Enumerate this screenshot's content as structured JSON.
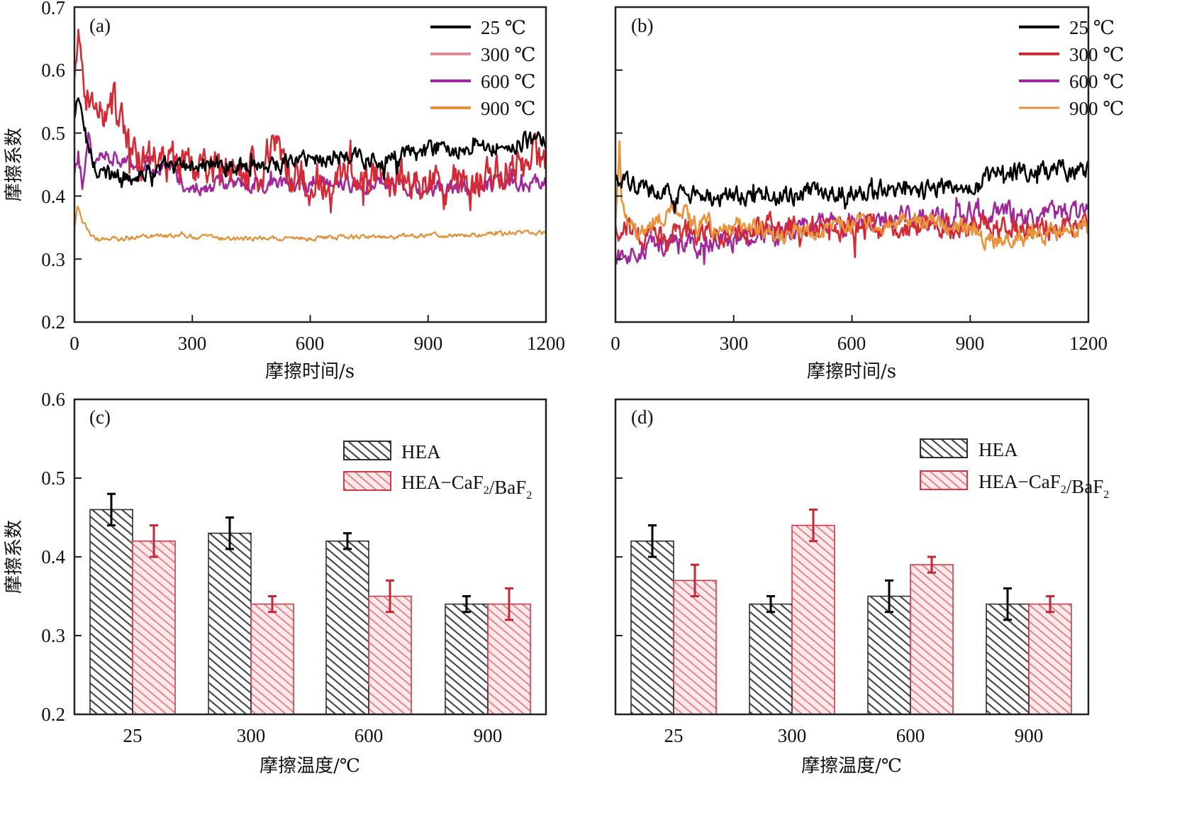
{
  "chart_data": [
    {
      "panel": "(a)",
      "type": "line",
      "xlabel": "摩擦时间/s",
      "ylabel": "摩擦系数",
      "xlim": [
        0,
        1200
      ],
      "ylim": [
        0.2,
        0.7
      ],
      "xticks": [
        "0",
        "300",
        "600",
        "900",
        "1200"
      ],
      "yticks": [
        "0.2",
        "0.3",
        "0.4",
        "0.5",
        "0.6",
        "0.7"
      ],
      "legend_position": "top-right",
      "series": [
        {
          "name": "25 ℃",
          "color": "#000000",
          "noise": 0.012,
          "x": [
            0,
            10,
            30,
            60,
            100,
            200,
            300,
            400,
            500,
            600,
            700,
            800,
            900,
            1000,
            1100,
            1200
          ],
          "y": [
            0.52,
            0.56,
            0.49,
            0.44,
            0.43,
            0.44,
            0.45,
            0.45,
            0.45,
            0.46,
            0.46,
            0.46,
            0.47,
            0.48,
            0.48,
            0.49
          ]
        },
        {
          "name": "300 ℃",
          "color": "#d42a35",
          "legend_color": "#e88a97",
          "noise": 0.025,
          "x": [
            0,
            10,
            30,
            60,
            100,
            150,
            200,
            300,
            400,
            480,
            500,
            540,
            600,
            700,
            800,
            900,
            1000,
            1100,
            1200
          ],
          "y": [
            0.58,
            0.63,
            0.57,
            0.53,
            0.55,
            0.46,
            0.45,
            0.45,
            0.44,
            0.44,
            0.5,
            0.43,
            0.42,
            0.43,
            0.43,
            0.42,
            0.42,
            0.44,
            0.46
          ]
        },
        {
          "name": "600 ℃",
          "color": "#a0289a",
          "noise": 0.01,
          "x": [
            0,
            10,
            20,
            35,
            50,
            80,
            150,
            250,
            270,
            400,
            600,
            800,
            880,
            900,
            1000,
            1100,
            1200
          ],
          "y": [
            0.43,
            0.47,
            0.41,
            0.5,
            0.45,
            0.47,
            0.45,
            0.44,
            0.41,
            0.42,
            0.42,
            0.42,
            0.41,
            0.41,
            0.41,
            0.42,
            0.42
          ]
        },
        {
          "name": "900 ℃",
          "color": "#e0913a",
          "noise": 0.003,
          "x": [
            0,
            8,
            20,
            40,
            60,
            100,
            200,
            400,
            600,
            800,
            1000,
            1200
          ],
          "y": [
            0.35,
            0.385,
            0.36,
            0.34,
            0.332,
            0.332,
            0.337,
            0.333,
            0.333,
            0.336,
            0.338,
            0.343
          ]
        }
      ]
    },
    {
      "panel": "(b)",
      "type": "line",
      "xlabel": "摩擦时间/s",
      "ylabel": "",
      "xlim": [
        0,
        1200
      ],
      "ylim": [
        0.2,
        0.7
      ],
      "xticks": [
        "0",
        "300",
        "600",
        "900",
        "1200"
      ],
      "yticks": [],
      "legend_position": "top-right",
      "series": [
        {
          "name": "25 ℃",
          "color": "#000000",
          "noise": 0.012,
          "x": [
            0,
            20,
            100,
            200,
            300,
            400,
            600,
            800,
            900,
            950,
            1000,
            1100,
            1200
          ],
          "y": [
            0.42,
            0.42,
            0.41,
            0.4,
            0.4,
            0.4,
            0.41,
            0.41,
            0.42,
            0.43,
            0.44,
            0.44,
            0.44
          ]
        },
        {
          "name": "300 ℃",
          "color": "#d42a35",
          "noise": 0.015,
          "x": [
            0,
            20,
            100,
            200,
            300,
            400,
            600,
            800,
            900,
            1000,
            1100,
            1200
          ],
          "y": [
            0.35,
            0.35,
            0.33,
            0.34,
            0.34,
            0.35,
            0.35,
            0.35,
            0.35,
            0.35,
            0.35,
            0.36
          ]
        },
        {
          "name": "600 ℃",
          "color": "#a0289a",
          "noise": 0.014,
          "x": [
            0,
            10,
            30,
            100,
            200,
            300,
            400,
            600,
            800,
            900,
            1000,
            1100,
            1200
          ],
          "y": [
            0.29,
            0.3,
            0.31,
            0.33,
            0.32,
            0.33,
            0.34,
            0.36,
            0.37,
            0.37,
            0.37,
            0.37,
            0.37
          ]
        },
        {
          "name": "900 ℃",
          "color": "#e9923a",
          "noise": 0.012,
          "x": [
            0,
            10,
            15,
            25,
            60,
            160,
            200,
            250,
            300,
            400,
            600,
            800,
            900,
            950,
            1000,
            1100,
            1200
          ],
          "y": [
            0.35,
            0.48,
            0.4,
            0.35,
            0.34,
            0.38,
            0.36,
            0.35,
            0.36,
            0.34,
            0.35,
            0.36,
            0.35,
            0.33,
            0.33,
            0.34,
            0.35
          ]
        }
      ]
    },
    {
      "panel": "(c)",
      "type": "bar",
      "xlabel": "摩擦温度/℃",
      "ylabel": "摩擦系数",
      "categories": [
        "25",
        "300",
        "600",
        "900"
      ],
      "ylim": [
        0.2,
        0.6
      ],
      "yticks": [
        "0.2",
        "0.3",
        "0.4",
        "0.5",
        "0.6"
      ],
      "legend_position": "top-right",
      "series": [
        {
          "name": "HEA",
          "color": "#3c4448",
          "values": [
            0.46,
            0.43,
            0.42,
            0.34
          ],
          "errors": [
            0.02,
            0.02,
            0.01,
            0.01
          ]
        },
        {
          "name": "HEA−CaF₂/BaF₂",
          "color": "#d03a48",
          "values": [
            0.42,
            0.34,
            0.35,
            0.34
          ],
          "errors": [
            0.02,
            0.01,
            0.02,
            0.02
          ]
        }
      ]
    },
    {
      "panel": "(d)",
      "type": "bar",
      "xlabel": "摩擦温度/℃",
      "ylabel": "",
      "categories": [
        "25",
        "300",
        "600",
        "900"
      ],
      "ylim": [
        0.2,
        0.6
      ],
      "yticks": [],
      "legend_position": "top-right",
      "series": [
        {
          "name": "HEA",
          "color": "#3c4448",
          "values": [
            0.42,
            0.34,
            0.35,
            0.34
          ],
          "errors": [
            0.02,
            0.01,
            0.02,
            0.02
          ]
        },
        {
          "name": "HEA−CaF₂/BaF₂",
          "color": "#d03a48",
          "values": [
            0.37,
            0.44,
            0.39,
            0.34
          ],
          "errors": [
            0.02,
            0.02,
            0.01,
            0.01
          ]
        }
      ]
    }
  ]
}
